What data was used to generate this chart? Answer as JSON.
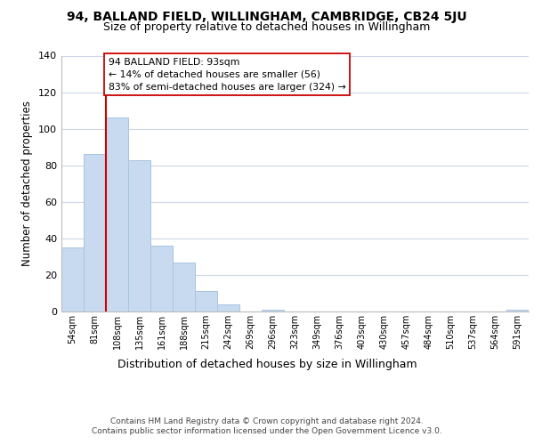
{
  "title_line1": "94, BALLAND FIELD, WILLINGHAM, CAMBRIDGE, CB24 5JU",
  "title_line2": "Size of property relative to detached houses in Willingham",
  "xlabel": "Distribution of detached houses by size in Willingham",
  "ylabel": "Number of detached properties",
  "bar_labels": [
    "54sqm",
    "81sqm",
    "108sqm",
    "135sqm",
    "161sqm",
    "188sqm",
    "215sqm",
    "242sqm",
    "269sqm",
    "296sqm",
    "323sqm",
    "349sqm",
    "376sqm",
    "403sqm",
    "430sqm",
    "457sqm",
    "484sqm",
    "510sqm",
    "537sqm",
    "564sqm",
    "591sqm"
  ],
  "bar_values": [
    35,
    86,
    106,
    83,
    36,
    27,
    11,
    4,
    0,
    1,
    0,
    0,
    0,
    0,
    0,
    0,
    0,
    0,
    0,
    0,
    1
  ],
  "bar_color": "#c8daf0",
  "bar_edge_color": "#a8c4e0",
  "vline_x": 1.5,
  "vline_color": "#cc0000",
  "annotation_title": "94 BALLAND FIELD: 93sqm",
  "annotation_line1": "← 14% of detached houses are smaller (56)",
  "annotation_line2": "83% of semi-detached houses are larger (324) →",
  "annotation_box_color": "#ffffff",
  "annotation_box_edge": "#cc0000",
  "ylim": [
    0,
    140
  ],
  "yticks": [
    0,
    20,
    40,
    60,
    80,
    100,
    120,
    140
  ],
  "footer_line1": "Contains HM Land Registry data © Crown copyright and database right 2024.",
  "footer_line2": "Contains public sector information licensed under the Open Government Licence v3.0.",
  "bg_color": "#ffffff",
  "grid_color": "#ccd8e8"
}
